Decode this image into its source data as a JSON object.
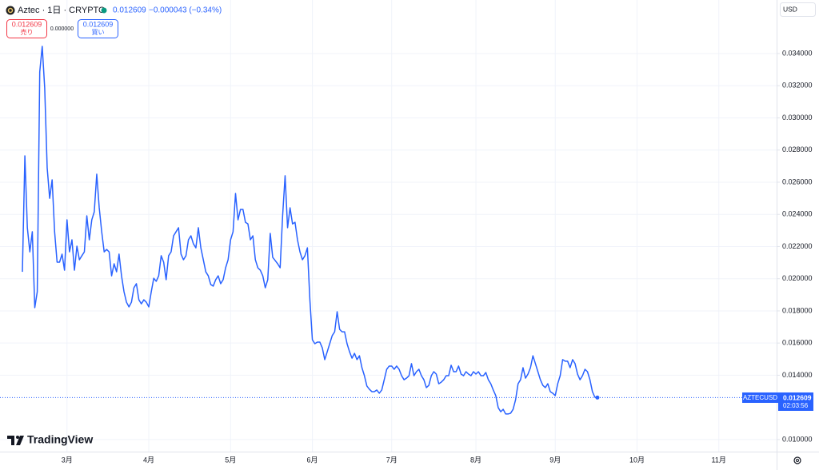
{
  "header": {
    "title": "Aztec · 1日 · CRYPTO",
    "price": 0.012609,
    "change": "−0.000043 (−0.34%)"
  },
  "trade": {
    "sell_price": "0.012609",
    "sell_label": "売り",
    "spread": "0.000000",
    "buy_price": "0.012609",
    "buy_label": "買い"
  },
  "currency": "USD",
  "price_tag": {
    "symbol": "AZTECUSD",
    "price": "0.012609",
    "countdown": "02:03:56"
  },
  "logo": "TradingView",
  "chart_data": {
    "type": "line",
    "color": "#2962ff",
    "grid": true,
    "ylim": [
      0.00925,
      0.03733
    ],
    "yticks": [
      {
        "value": 0.01,
        "label": "0.010000"
      },
      {
        "value": 0.014,
        "label": "0.014000"
      },
      {
        "value": 0.016,
        "label": "0.016000"
      },
      {
        "value": 0.018,
        "label": "0.018000"
      },
      {
        "value": 0.02,
        "label": "0.020000"
      },
      {
        "value": 0.022,
        "label": "0.022000"
      },
      {
        "value": 0.024,
        "label": "0.024000"
      },
      {
        "value": 0.026,
        "label": "0.026000"
      },
      {
        "value": 0.028,
        "label": "0.028000"
      },
      {
        "value": 0.03,
        "label": "0.030000"
      },
      {
        "value": 0.032,
        "label": "0.032000"
      },
      {
        "value": 0.034,
        "label": "0.034000"
      }
    ],
    "categories": [
      null,
      null,
      null,
      null,
      null,
      null,
      null,
      null,
      null,
      null,
      null,
      null,
      null,
      null,
      null,
      null,
      null,
      null,
      "3月",
      null,
      null,
      null,
      null,
      null,
      null,
      null,
      null,
      null,
      null,
      null,
      null,
      null,
      null,
      null,
      null,
      null,
      null,
      null,
      null,
      null,
      null,
      null,
      null,
      null,
      null,
      null,
      null,
      null,
      null,
      null,
      null,
      "4月",
      null,
      null,
      null,
      null,
      null,
      null,
      null,
      null,
      null,
      null,
      null,
      null,
      null,
      null,
      null,
      null,
      null,
      null,
      null,
      null,
      null,
      null,
      null,
      null,
      null,
      null,
      null,
      null,
      null,
      null,
      null,
      null,
      "5月",
      null,
      null,
      null,
      null,
      null,
      null,
      null,
      null,
      null,
      null,
      null,
      null,
      null,
      null,
      null,
      null,
      null,
      null,
      null,
      null,
      null,
      null,
      null,
      null,
      null,
      null,
      null,
      null,
      null,
      null,
      null,
      null,
      "6月",
      null,
      null,
      null,
      null,
      null,
      null,
      null,
      null,
      null,
      null,
      null,
      null,
      null,
      null,
      null,
      null,
      null,
      null,
      null,
      null,
      null,
      null,
      null,
      null,
      null,
      null,
      null,
      null,
      null,
      null,
      null,
      "7月",
      null,
      null,
      null,
      null,
      null,
      null,
      null,
      null,
      null,
      null,
      null,
      null,
      null,
      null,
      null,
      null,
      null,
      null,
      null,
      null,
      null,
      null,
      null,
      null,
      null,
      null,
      null,
      null,
      null,
      null,
      null,
      null,
      null,
      "8月",
      null,
      null,
      null,
      null,
      null,
      null,
      null,
      null,
      null,
      null,
      null,
      null,
      null,
      null,
      null,
      null,
      null,
      null,
      null,
      null,
      null,
      null,
      null,
      null,
      null,
      null,
      null,
      null,
      null,
      null,
      null,
      "9月",
      null,
      null,
      null,
      null,
      null,
      null,
      null,
      null,
      null,
      null,
      null,
      null,
      null,
      null,
      null,
      null,
      null,
      null,
      null,
      null,
      null,
      null,
      null,
      null,
      null,
      null,
      null,
      null,
      null,
      null,
      null,
      null,
      "10月",
      null,
      null,
      null,
      null,
      null,
      null,
      null,
      null,
      null,
      null,
      null,
      null,
      null,
      null,
      null,
      null,
      null,
      null,
      null,
      null,
      null,
      null,
      null,
      null,
      null,
      null,
      null,
      null,
      null,
      null,
      null,
      null,
      "11月",
      null,
      null,
      null,
      null,
      null,
      null,
      null,
      null,
      null,
      null,
      null,
      null,
      null,
      null,
      null,
      null,
      null,
      null,
      null,
      null,
      null,
      null,
      null
    ],
    "values": [
      0.02043,
      0.02764,
      0.02317,
      0.02167,
      0.02292,
      0.0182,
      0.01919,
      0.03286,
      0.03445,
      0.03186,
      0.02689,
      0.025,
      0.02615,
      0.02292,
      0.02103,
      0.02103,
      0.02153,
      0.02053,
      0.02366,
      0.02167,
      0.02242,
      0.02053,
      0.02202,
      0.02118,
      0.02143,
      0.02167,
      0.02391,
      0.02242,
      0.02366,
      0.02416,
      0.0265,
      0.02441,
      0.02292,
      0.02167,
      0.02182,
      0.02167,
      0.02018,
      0.02093,
      0.02043,
      0.02153,
      0.02018,
      0.01919,
      0.01854,
      0.01825,
      0.01854,
      0.01944,
      0.01969,
      0.01869,
      0.01844,
      0.01869,
      0.01854,
      0.01825,
      0.01919,
      0.02003,
      0.01984,
      0.02018,
      0.02143,
      0.02103,
      0.01994,
      0.02143,
      0.02167,
      0.02267,
      0.02292,
      0.02317,
      0.02153,
      0.02118,
      0.02143,
      0.02242,
      0.02267,
      0.02217,
      0.02192,
      0.02317,
      0.02192,
      0.02118,
      0.02043,
      0.02018,
      0.01964,
      0.01954,
      0.01994,
      0.02018,
      0.01969,
      0.01994,
      0.02068,
      0.02118,
      0.02242,
      0.02292,
      0.0253,
      0.02366,
      0.02431,
      0.02431,
      0.02351,
      0.02341,
      0.02242,
      0.02267,
      0.02118,
      0.02068,
      0.02053,
      0.02018,
      0.01944,
      0.01994,
      0.02282,
      0.02133,
      0.02113,
      0.02093,
      0.02068,
      0.02391,
      0.0264,
      0.02317,
      0.02441,
      0.02341,
      0.02351,
      0.02242,
      0.02167,
      0.02118,
      0.02143,
      0.02192,
      0.01869,
      0.01621,
      0.01596,
      0.01606,
      0.01606,
      0.01571,
      0.01497,
      0.01546,
      0.01596,
      0.01646,
      0.0167,
      0.01795,
      0.01685,
      0.0167,
      0.0167,
      0.01596,
      0.01546,
      0.01506,
      0.01536,
      0.01497,
      0.01521,
      0.01447,
      0.01397,
      0.01333,
      0.01313,
      0.01298,
      0.01298,
      0.01308,
      0.01288,
      0.01308,
      0.01372,
      0.01437,
      0.01457,
      0.01457,
      0.01437,
      0.01457,
      0.01437,
      0.01397,
      0.01372,
      0.01382,
      0.01397,
      0.01472,
      0.01397,
      0.01422,
      0.01437,
      0.01397,
      0.01372,
      0.01323,
      0.01337,
      0.01397,
      0.01422,
      0.01407,
      0.01347,
      0.01357,
      0.01372,
      0.01397,
      0.01397,
      0.01462,
      0.01422,
      0.01422,
      0.01457,
      0.01407,
      0.01397,
      0.01422,
      0.01407,
      0.01397,
      0.01422,
      0.01407,
      0.01422,
      0.01397,
      0.01397,
      0.01417,
      0.01372,
      0.01347,
      0.01308,
      0.01273,
      0.01198,
      0.01173,
      0.01188,
      0.01159,
      0.01159,
      0.01164,
      0.01188,
      0.01248,
      0.01347,
      0.01372,
      0.01447,
      0.01382,
      0.01407,
      0.01447,
      0.01521,
      0.01472,
      0.01422,
      0.01372,
      0.01337,
      0.01323,
      0.01347,
      0.01298,
      0.01288,
      0.01273,
      0.01347,
      0.01397,
      0.01497,
      0.01487,
      0.01487,
      0.01447,
      0.01497,
      0.01472,
      0.01407,
      0.01372,
      0.01397,
      0.01437,
      0.01422,
      0.01372,
      0.01298,
      0.01263,
      0.012609,
      null,
      null,
      null,
      null,
      null,
      null,
      null,
      null,
      null,
      null,
      null,
      null,
      null,
      null,
      null,
      null,
      null,
      null,
      null,
      null,
      null,
      null,
      null,
      null,
      null,
      null,
      null,
      null,
      null,
      null,
      null,
      null,
      null,
      null,
      null,
      null,
      null,
      null,
      null,
      null,
      null,
      null,
      null,
      null,
      null,
      null,
      null,
      null,
      null,
      null,
      null,
      null,
      null,
      null,
      null,
      null,
      null,
      null,
      null,
      null,
      null,
      null,
      null,
      null,
      null,
      null,
      null,
      null,
      null,
      null,
      null,
      null
    ]
  }
}
